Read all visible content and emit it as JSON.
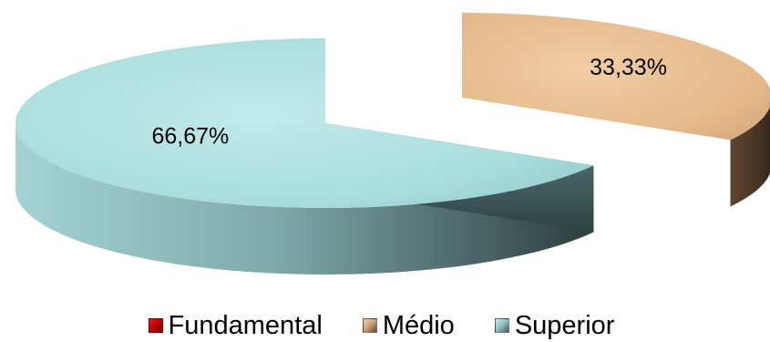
{
  "chart_data": {
    "type": "pie",
    "style": "3d",
    "title": "",
    "categories": [
      "Fundamental",
      "Médio",
      "Superior"
    ],
    "values": [
      0,
      33.33,
      66.67
    ],
    "data_labels": [
      "",
      "33,33%",
      "66,67%"
    ],
    "legend": {
      "position": "bottom",
      "items": [
        "Fundamental",
        "Médio",
        "Superior"
      ]
    },
    "colors": {
      "Fundamental": {
        "top": "#c00000",
        "side": "#7a0000"
      },
      "Médio": {
        "top": "#e8bd8b",
        "side": "#4d3826"
      },
      "Superior": {
        "top": "#a9dcdc",
        "side": "#6e9494"
      }
    },
    "exploded": "Médio"
  }
}
